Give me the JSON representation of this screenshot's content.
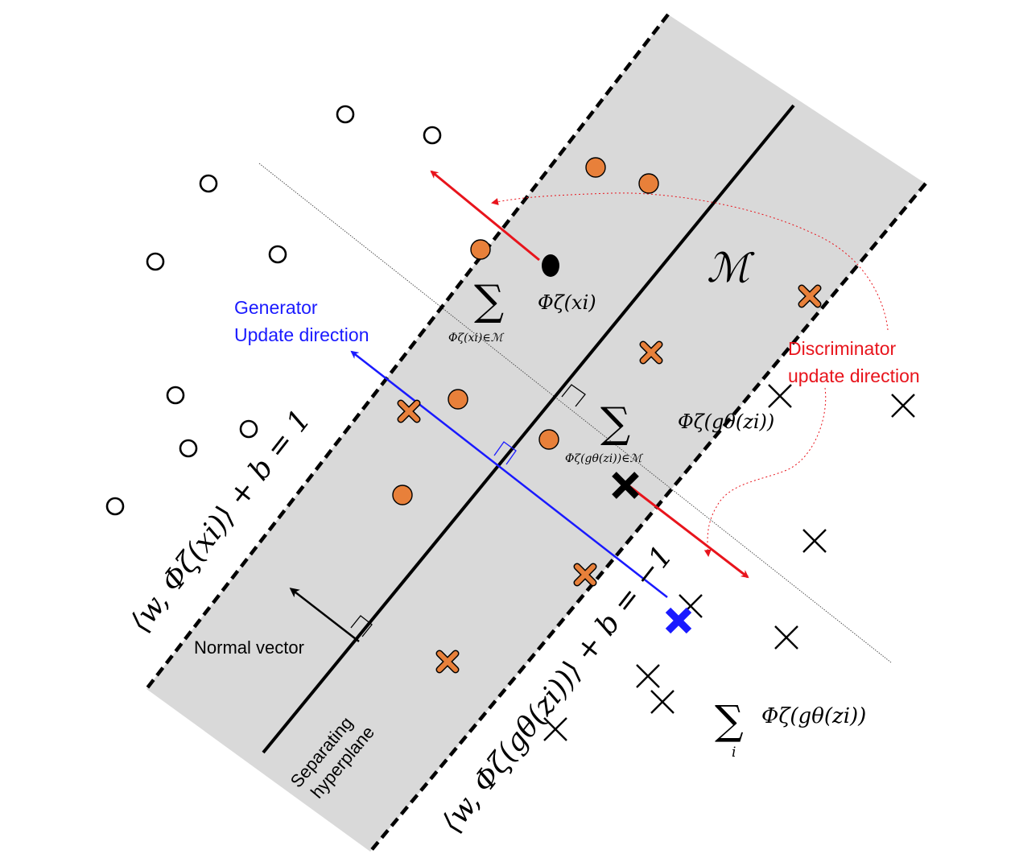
{
  "labels": {
    "generator_line1": "Generator",
    "generator_line2": "Update  direction",
    "discriminator_line1": "Discriminator",
    "discriminator_line2": "update direction",
    "normal_vector": "Normal vector",
    "hyperplane_line1": "Separating",
    "hyperplane_line2": "hyperplane",
    "manifold": "ℳ",
    "phi_xi": "Φζ(xi)",
    "sum_xi_sub": "Φζ(xi)∈ℳ",
    "phi_g": "Φζ(gθ(zi))",
    "sum_g_sub": "Φζ(gθ(zi))∈ℳ",
    "sum_all_sub": "i",
    "sum_all_term": "Φζ(gθ(zi))",
    "upper_margin_eq": "⟨w, Φζ(xi)⟩ + b = 1",
    "lower_margin_eq": "⟨w, Φζ(gθ(zi))⟩ + b = −1",
    "sigma": "∑"
  },
  "colors": {
    "band": "#d9d9d9",
    "orange": "#e8803a",
    "generator": "#1a1aff",
    "discriminator": "#e8141c",
    "ink": "#000000"
  }
}
